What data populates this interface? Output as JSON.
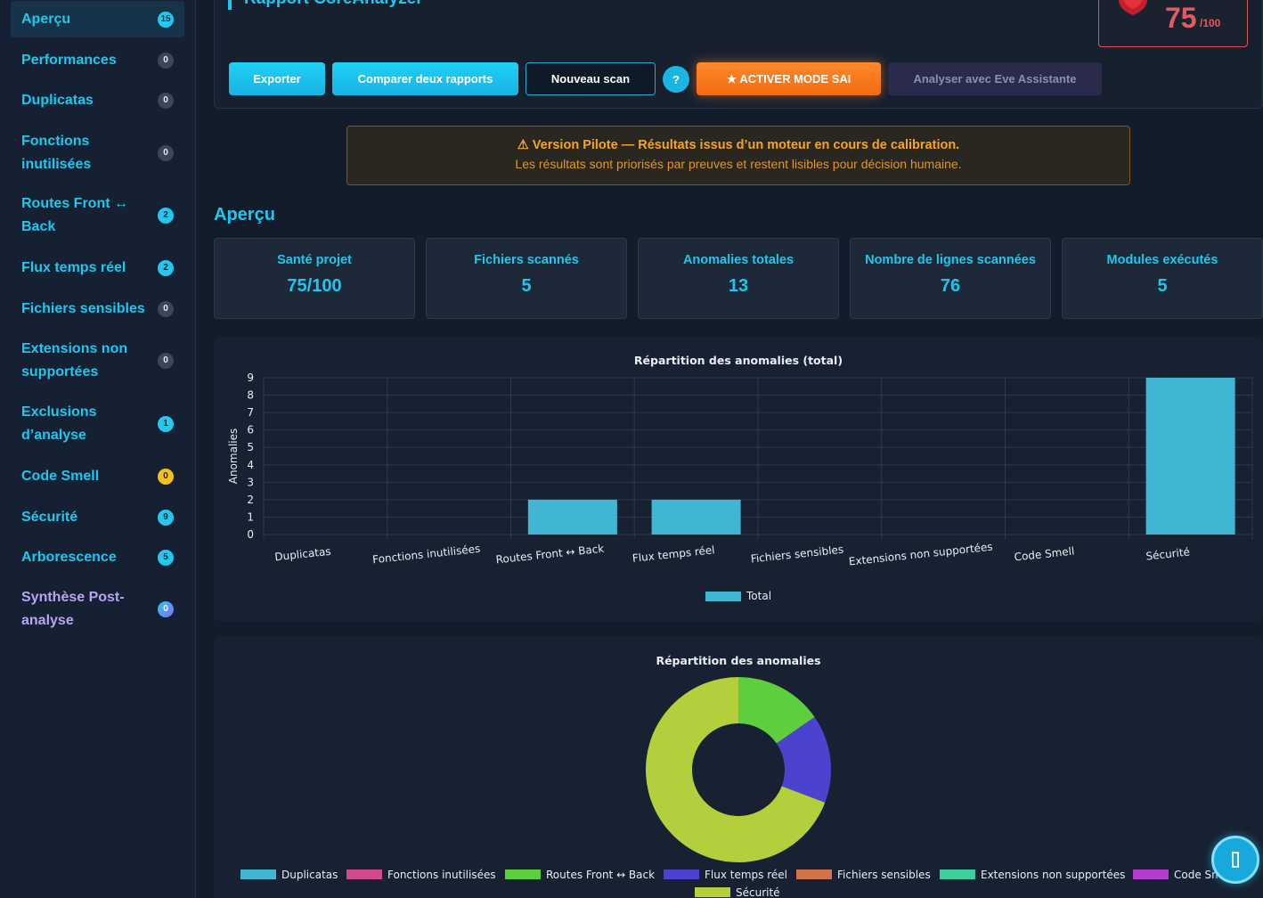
{
  "sidebar": {
    "items": [
      {
        "label": "Aperçu",
        "count": "15",
        "badge": "cyan"
      },
      {
        "label": "Performances",
        "count": "0",
        "badge": "gray"
      },
      {
        "label": "Duplicatas",
        "count": "0",
        "badge": "gray"
      },
      {
        "label": "Fonctions inutilisées",
        "count": "0",
        "badge": "gray"
      },
      {
        "label": "Routes Front ↔ Back",
        "count": "2",
        "badge": "cyan"
      },
      {
        "label": "Flux temps réel",
        "count": "2",
        "badge": "cyan"
      },
      {
        "label": "Fichiers sensibles",
        "count": "0",
        "badge": "gray"
      },
      {
        "label": "Extensions non supportées",
        "count": "0",
        "badge": "gray"
      },
      {
        "label": "Exclusions d’analyse",
        "count": "1",
        "badge": "cyan"
      },
      {
        "label": "Code Smell",
        "count": "0",
        "badge": "yellow"
      },
      {
        "label": "Sécurité",
        "count": "9",
        "badge": "cyan"
      },
      {
        "label": "Arborescence",
        "count": "5",
        "badge": "cyan"
      },
      {
        "label": "Synthèse Post-analyse",
        "count": "0",
        "badge": "grad"
      }
    ]
  },
  "header": {
    "title": "Rapport CoreAnalyzer",
    "score": "75",
    "score_max": "/100"
  },
  "toolbar": {
    "export": "Exporter",
    "compare": "Comparer deux rapports",
    "new_scan": "Nouveau scan",
    "help": "?",
    "sai": "★  ACTIVER MODE SAI",
    "eve": "Analyser avec Eve Assistante"
  },
  "warning": {
    "title": "⚠ Version Pilote — Résultats issus d’un moteur en cours de calibration.",
    "subtitle": "Les résultats sont priorisés par preuves et restent lisibles pour décision humaine."
  },
  "overview": {
    "title": "Aperçu",
    "stats": [
      {
        "label": "Santé projet",
        "value": "75/100"
      },
      {
        "label": "Fichiers scannés",
        "value": "5"
      },
      {
        "label": "Anomalies totales",
        "value": "13"
      },
      {
        "label": "Nombre de lignes scannées",
        "value": "76"
      },
      {
        "label": "Modules exécutés",
        "value": "5"
      }
    ]
  },
  "chart_data": [
    {
      "type": "bar",
      "title": "Répartition des anomalies (total)",
      "ylabel": "Anomalies",
      "ylim": [
        0,
        9
      ],
      "categories": [
        "Duplicatas",
        "Fonctions inutilisées",
        "Routes Front ↔ Back",
        "Flux temps réel",
        "Fichiers sensibles",
        "Extensions non supportées",
        "Code Smell",
        "Sécurité"
      ],
      "series": [
        {
          "name": "Total",
          "values": [
            0,
            0,
            2,
            2,
            0,
            0,
            0,
            9
          ],
          "color": "#41b6d3"
        }
      ],
      "legend": "bottom",
      "grid": true
    },
    {
      "type": "pie",
      "title": "Répartition des anomalies",
      "labels": [
        "Duplicatas",
        "Fonctions inutilisées",
        "Routes Front ↔ Back",
        "Flux temps réel",
        "Fichiers sensibles",
        "Extensions non supportées",
        "Code Smell",
        "Sécurité"
      ],
      "values": [
        0,
        0,
        2,
        2,
        0,
        0,
        0,
        9
      ],
      "colors": [
        "#41b6d3",
        "#d04b8c",
        "#5ecf3c",
        "#4b43d0",
        "#d0734b",
        "#3ccf9c",
        "#b43cd0",
        "#b4cf3c"
      ],
      "legend": "bottom"
    }
  ]
}
